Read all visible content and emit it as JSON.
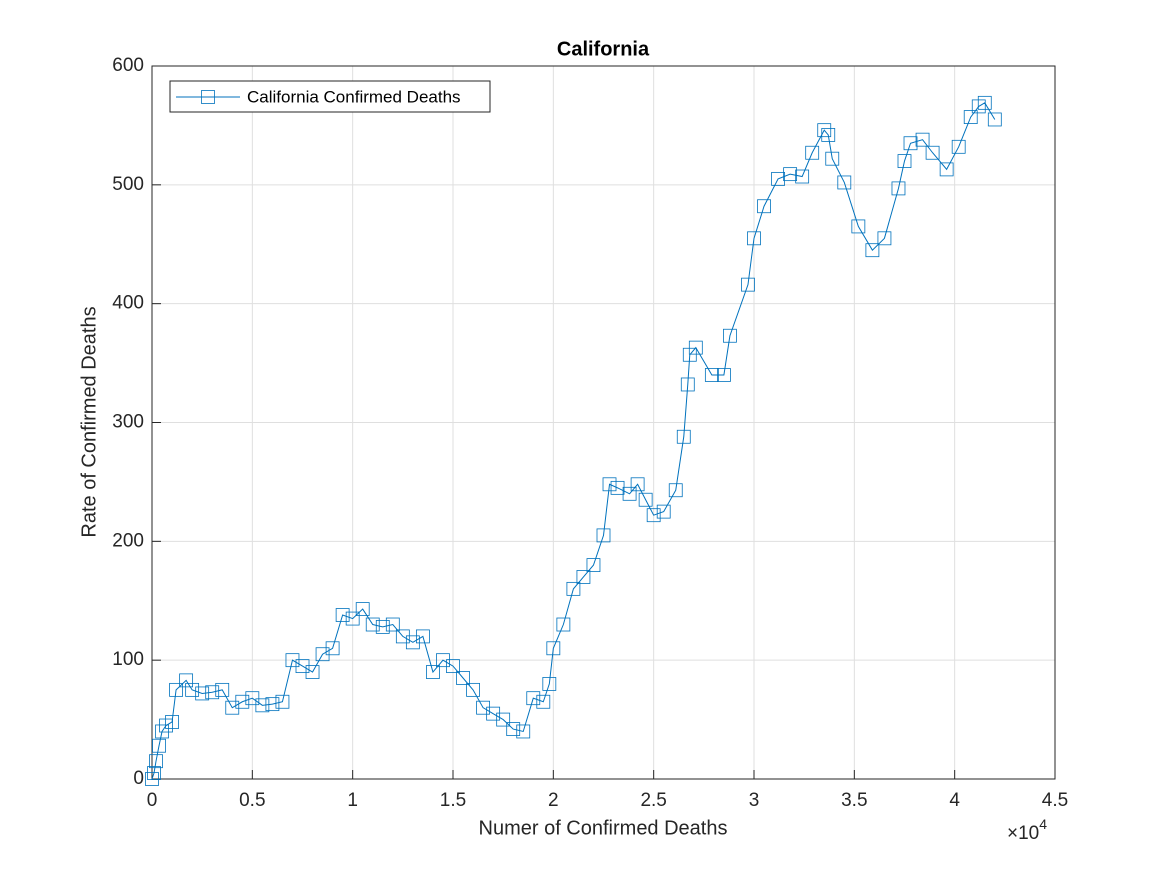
{
  "chart_data": {
    "type": "line",
    "title": "California",
    "xlabel": "Numer of Confirmed Deaths",
    "ylabel": "Rate of Confirmed Deaths",
    "x_multiplier": {
      "base": "×10",
      "exponent": "4"
    },
    "xlim": [
      0,
      45000
    ],
    "ylim": [
      0,
      600
    ],
    "xticks": [
      0,
      {
        "value": 5000,
        "label": "0.5"
      },
      {
        "value": 10000,
        "label": "1"
      },
      {
        "value": 15000,
        "label": "1.5"
      },
      {
        "value": 20000,
        "label": "2"
      },
      {
        "value": 25000,
        "label": "2.5"
      },
      {
        "value": 30000,
        "label": "3"
      },
      {
        "value": 35000,
        "label": "3.5"
      },
      {
        "value": 40000,
        "label": "4"
      },
      {
        "value": 45000,
        "label": "4.5"
      }
    ],
    "yticks": [
      0,
      100,
      200,
      300,
      400,
      500,
      600
    ],
    "grid": true,
    "legend_position": "upper-left",
    "x": [
      0,
      100,
      200,
      350,
      500,
      700,
      1000,
      1200,
      1700,
      2000,
      2500,
      3000,
      3500,
      4000,
      4500,
      5000,
      5500,
      6000,
      6500,
      7000,
      7500,
      8000,
      8500,
      9000,
      9500,
      10000,
      10500,
      11000,
      11500,
      12000,
      12500,
      13000,
      13500,
      14000,
      14500,
      15000,
      15500,
      16000,
      16500,
      17000,
      17500,
      18000,
      18500,
      19000,
      19500,
      19800,
      20000,
      20500,
      21000,
      21500,
      22000,
      22500,
      22800,
      23200,
      23800,
      24200,
      24600,
      25000,
      25500,
      26100,
      26500,
      26700,
      26800,
      27100,
      27900,
      28500,
      28800,
      29700,
      30000,
      30500,
      31200,
      31800,
      32400,
      32900,
      33500,
      33700,
      33900,
      34500,
      35200,
      35900,
      36500,
      37200,
      37500,
      37800,
      38400,
      38900,
      39600,
      40200,
      40800,
      41200,
      41500,
      42000
    ],
    "series": [
      {
        "name": "California Confirmed Deaths",
        "color": "#0072bd",
        "values": [
          0,
          5,
          15,
          28,
          40,
          45,
          48,
          75,
          83,
          75,
          72,
          73,
          75,
          60,
          65,
          68,
          62,
          63,
          65,
          100,
          95,
          90,
          105,
          110,
          138,
          135,
          143,
          130,
          128,
          130,
          120,
          115,
          120,
          90,
          100,
          95,
          85,
          75,
          60,
          55,
          50,
          42,
          40,
          68,
          65,
          80,
          110,
          130,
          160,
          170,
          180,
          205,
          248,
          245,
          240,
          248,
          235,
          222,
          225,
          243,
          288,
          332,
          357,
          363,
          340,
          340,
          373,
          416,
          455,
          482,
          505,
          509,
          507,
          527,
          546,
          542,
          522,
          502,
          465,
          445,
          455,
          497,
          520,
          535,
          538,
          527,
          513,
          532,
          557,
          566,
          569,
          555
        ]
      }
    ]
  }
}
